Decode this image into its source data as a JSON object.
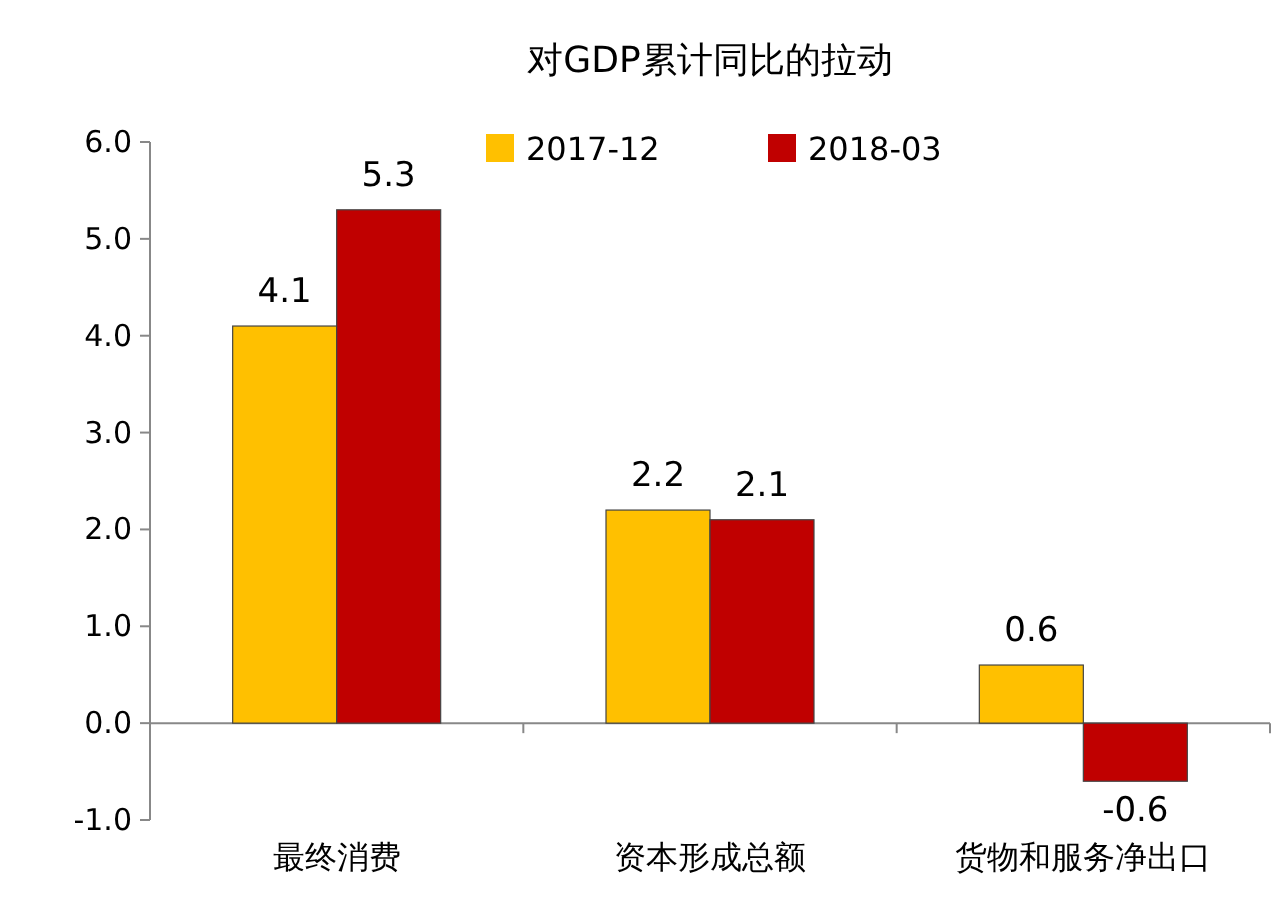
{
  "chart_data": {
    "type": "bar",
    "title": "对GDP累计同比的拉动",
    "categories": [
      "最终消费",
      "资本形成总额",
      "货物和服务净出口"
    ],
    "series": [
      {
        "name": "2017-12",
        "color": "#ffc000",
        "values": [
          4.1,
          2.2,
          0.6
        ]
      },
      {
        "name": "2018-03",
        "color": "#c00000",
        "values": [
          5.3,
          2.1,
          -0.6
        ]
      }
    ],
    "ylim": [
      -1,
      6
    ],
    "yticks": [
      {
        "value": -1,
        "label": "-1.0"
      },
      {
        "value": 0,
        "label": "0.0"
      },
      {
        "value": 1,
        "label": "1.0"
      },
      {
        "value": 2,
        "label": "2.0"
      },
      {
        "value": 3,
        "label": "3.0"
      },
      {
        "value": 4,
        "label": "4.0"
      },
      {
        "value": 5,
        "label": "5.0"
      },
      {
        "value": 6,
        "label": "6.0"
      }
    ],
    "data_labels": true,
    "legend": "top"
  }
}
